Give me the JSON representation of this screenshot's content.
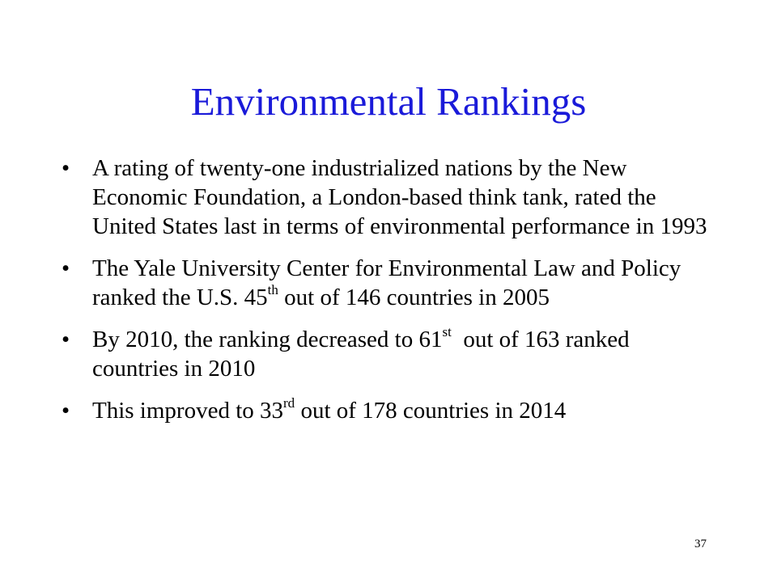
{
  "slide": {
    "title": "Environmental Rankings",
    "bullets": [
      {
        "text": "A rating of twenty-one industrialized nations by the New Economic Foundation, a London-based think tank, rated the United States last in terms of environmental performance in 1993"
      },
      {
        "before": "The Yale University Center for Environmental Law and Policy ranked the U.S. 45",
        "sup": "th",
        "after": " out of 146 countries in 2005"
      },
      {
        "before": "By 2010, the ranking decreased to 61",
        "sup": "st",
        "after": "  out of 163 ranked countries in 2010"
      },
      {
        "before": "This improved to 33",
        "sup": "rd",
        "after": " out of 178 countries in 2014"
      }
    ],
    "bullet_glyph": "•",
    "page_number": "37",
    "title_color": "#1a1ad9"
  }
}
